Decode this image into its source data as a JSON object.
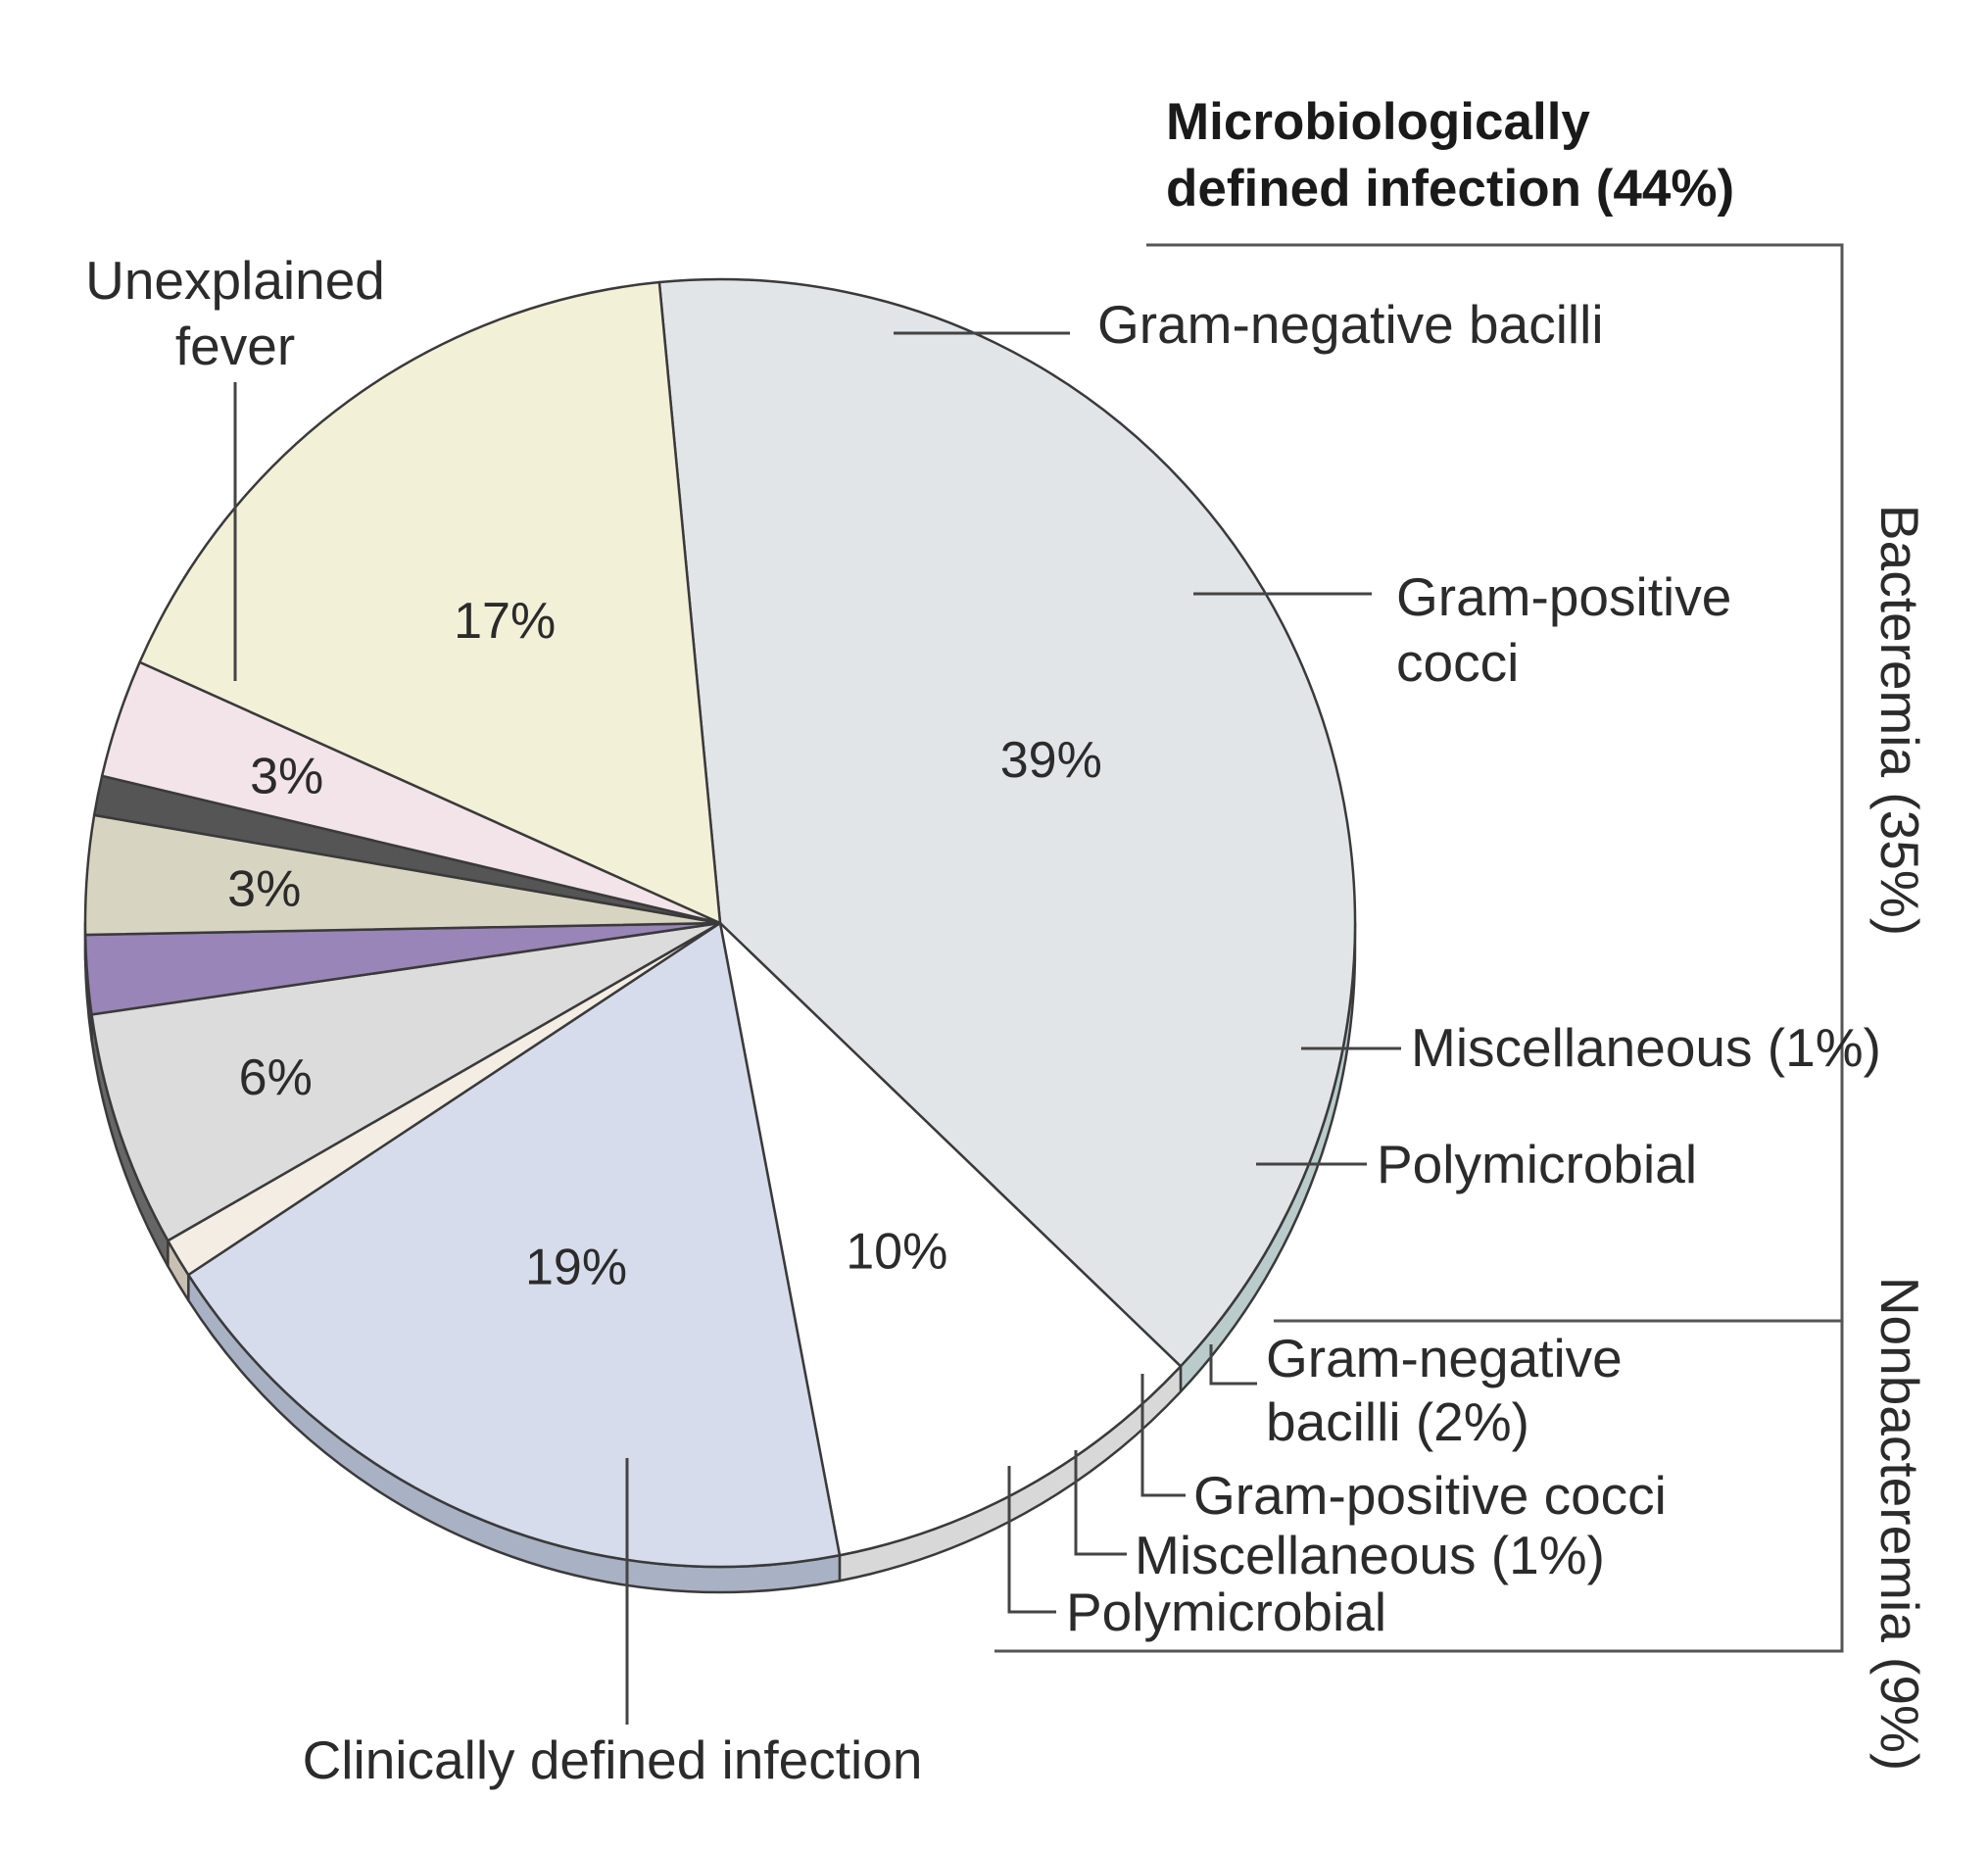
{
  "chart_data": {
    "type": "pie",
    "title": "",
    "slices": [
      {
        "label": "Unexplained fever",
        "value": 39,
        "value_label": "39%",
        "color": "#e2e5e8",
        "side_color": "#b9cbcb"
      },
      {
        "label": "Gram-negative bacilli",
        "value": 10,
        "value_label": "10%",
        "color": "#ffffff",
        "side_color": "#d8d8d8"
      },
      {
        "label": "Gram-positive cocci",
        "value": 19,
        "value_label": "19%",
        "color": "#d6dceb",
        "side_color": "#a9b1c4"
      },
      {
        "label": "Miscellaneous (1%)",
        "value": 1,
        "value_label": "",
        "color": "#f3ede3",
        "side_color": "#c8c0b2"
      },
      {
        "label": "Polymicrobial",
        "value": 6,
        "value_label": "6%",
        "color": "#dcdcdc",
        "side_color": "#666666"
      },
      {
        "label": "Gram-negative bacilli (2%)",
        "value": 2,
        "value_label": "",
        "color": "#9985b8",
        "side_color": "#4a3a6e"
      },
      {
        "label": "Gram-positive cocci",
        "value": 3,
        "value_label": "3%",
        "color": "#d7d5c2",
        "side_color": "#a8a58a"
      },
      {
        "label": "Miscellaneous (1%)",
        "value": 1,
        "value_label": "",
        "color": "#555555",
        "side_color": "#111111"
      },
      {
        "label": "Polymicrobial",
        "value": 3,
        "value_label": "3%",
        "color": "#f2e4e8",
        "side_color": "#d3acb4"
      },
      {
        "label": "Clinically defined infection",
        "value": 17,
        "value_label": "17%",
        "color": "#f3f0d8",
        "side_color": "#ede18f"
      }
    ],
    "groups": [
      {
        "label": "Microbiologically",
        "label_line2": "defined infection (44%)",
        "value": 44
      },
      {
        "label": "Bacteremia (35%)",
        "value": 35
      },
      {
        "label": "Nonbacteremia (9%)",
        "value": 9
      }
    ],
    "legend": "none"
  },
  "labels": {
    "unexplained_line1": "Unexplained",
    "unexplained_line2": "fever",
    "gnb_bact": "Gram-negative bacilli",
    "gpc_bact_line1": "Gram-positive",
    "gpc_bact_line2": "cocci",
    "misc_bact": "Miscellaneous (1%)",
    "poly_bact": "Polymicrobial",
    "gnb_non_line1": "Gram-negative",
    "gnb_non_line2": "bacilli (2%)",
    "gpc_non": "Gram-positive cocci",
    "misc_non": "Miscellaneous (1%)",
    "poly_non": "Polymicrobial",
    "clinical": "Clinically defined infection",
    "micro_header_line1": "Microbiologically",
    "micro_header_line2": "defined infection (44%)",
    "bacteremia": "Bacteremia (35%)",
    "nonbacteremia": "Nonbacteremia (9%)"
  }
}
